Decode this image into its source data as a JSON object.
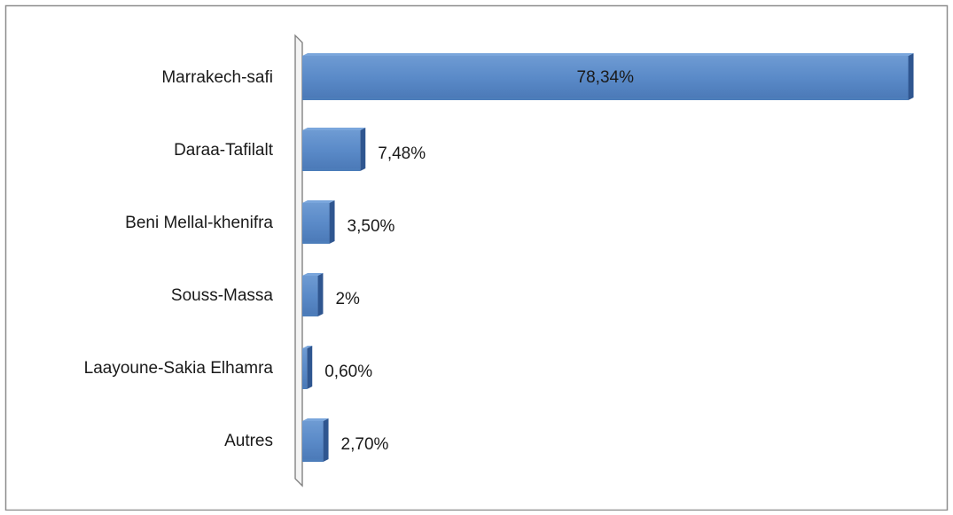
{
  "chart_data": {
    "type": "barh",
    "categories": [
      "Marrakech-safi",
      "Daraa-Tafilalt",
      "Beni Mellal-khenifra",
      "Souss-Massa",
      "Laayoune-Sakia Elhamra",
      "Autres"
    ],
    "values": [
      78.34,
      7.48,
      3.5,
      2,
      0.6,
      2.7
    ],
    "value_labels": [
      "78,34%",
      "7,48%",
      "3,50%",
      "2%",
      "0,60%",
      "2,70%"
    ],
    "color": "#4f81bd",
    "xlim": [
      0,
      80
    ]
  }
}
